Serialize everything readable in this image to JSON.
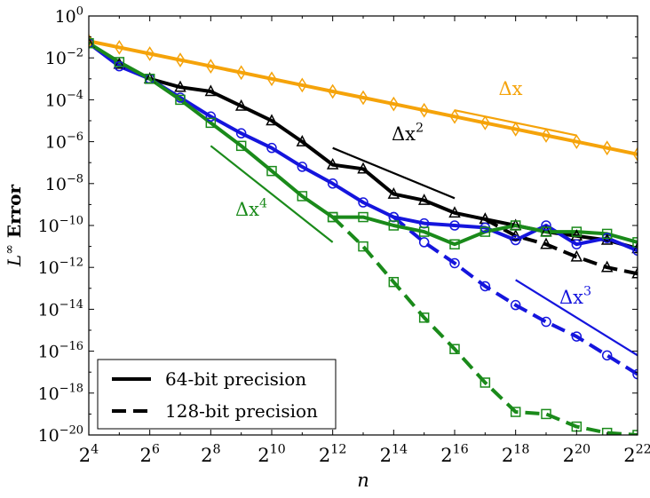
{
  "chart_data": {
    "type": "line",
    "x_scale": "log2",
    "y_scale": "log10",
    "xlim_exp": [
      4,
      22
    ],
    "ylim_exp": [
      -20,
      0
    ],
    "x_tick_base": "2",
    "x_tick_exponents": [
      "4",
      "6",
      "8",
      "10",
      "12",
      "14",
      "16",
      "18",
      "20",
      "22"
    ],
    "y_tick_base": "10",
    "y_tick_exponents": [
      "0",
      "−2",
      "−4",
      "−6",
      "−8",
      "−10",
      "−12",
      "−14",
      "−16",
      "−18",
      "−20"
    ],
    "xlabel": "n",
    "ylabel_math": "L",
    "ylabel_sup": "∞",
    "ylabel_text": " Error",
    "grid": false,
    "legend": {
      "placement": "lower-left",
      "entries": [
        {
          "label": "64-bit precision",
          "style": "solid"
        },
        {
          "label": "128-bit precision",
          "style": "dashed"
        }
      ]
    },
    "series": [
      {
        "order": "Δx",
        "color": "#f5a30a",
        "marker": "diamond",
        "precision": "64-bit",
        "x_exp": [
          4,
          5,
          6,
          7,
          8,
          9,
          10,
          11,
          12,
          13,
          14,
          15,
          16,
          17,
          18,
          19,
          20,
          21,
          22
        ],
        "y_exp": [
          -1.2,
          -1.5,
          -1.8,
          -2.1,
          -2.4,
          -2.7,
          -3.0,
          -3.3,
          -3.6,
          -3.9,
          -4.2,
          -4.5,
          -4.8,
          -5.1,
          -5.4,
          -5.7,
          -6.0,
          -6.3,
          -6.6
        ]
      },
      {
        "order": "Δx²",
        "color": "#000000",
        "marker": "triangle",
        "precision": "64-bit",
        "x_exp": [
          4,
          5,
          6,
          7,
          8,
          9,
          10,
          11,
          12,
          13,
          14,
          15,
          16,
          17,
          18,
          19,
          20,
          21,
          22
        ],
        "y_exp": [
          -1.3,
          -2.3,
          -3.0,
          -3.4,
          -3.6,
          -4.3,
          -5.0,
          -6.0,
          -7.1,
          -7.3,
          -8.5,
          -8.8,
          -9.4,
          -9.7,
          -10.0,
          -10.3,
          -10.5,
          -10.7,
          -11.1
        ]
      },
      {
        "order": "Δx²",
        "color": "#000000",
        "marker": "triangle",
        "precision": "128-bit",
        "x_exp": [
          17,
          18,
          19,
          20,
          21,
          22
        ],
        "y_exp": [
          -9.7,
          -10.5,
          -10.9,
          -11.5,
          -12.0,
          -12.3
        ]
      },
      {
        "order": "Δx³",
        "color": "#1515dd",
        "marker": "circle",
        "precision": "64-bit",
        "x_exp": [
          4,
          5,
          6,
          7,
          8,
          9,
          10,
          11,
          12,
          13,
          14,
          15,
          16,
          17,
          18,
          19,
          20,
          21,
          22
        ],
        "y_exp": [
          -1.3,
          -2.4,
          -3.0,
          -3.9,
          -4.8,
          -5.6,
          -6.3,
          -7.2,
          -8.0,
          -8.9,
          -9.6,
          -9.9,
          -10.0,
          -10.1,
          -10.7,
          -10.0,
          -10.9,
          -10.6,
          -11.2
        ]
      },
      {
        "order": "Δx³",
        "color": "#1515dd",
        "marker": "circle",
        "precision": "128-bit",
        "x_exp": [
          14,
          15,
          16,
          17,
          18,
          19,
          20,
          21,
          22
        ],
        "y_exp": [
          -9.6,
          -10.8,
          -11.8,
          -12.9,
          -13.8,
          -14.6,
          -15.3,
          -16.2,
          -17.1
        ]
      },
      {
        "order": "Δx⁴",
        "color": "#1a8a1a",
        "marker": "square",
        "precision": "64-bit",
        "x_exp": [
          4,
          5,
          6,
          7,
          8,
          9,
          10,
          11,
          12,
          13,
          14,
          15,
          16,
          17,
          18,
          19,
          20,
          21,
          22
        ],
        "y_exp": [
          -1.3,
          -2.2,
          -3.0,
          -4.0,
          -5.1,
          -6.2,
          -7.4,
          -8.6,
          -9.6,
          -9.6,
          -10.0,
          -10.3,
          -10.9,
          -10.3,
          -10.0,
          -10.3,
          -10.3,
          -10.4,
          -10.8
        ]
      },
      {
        "order": "Δx⁴",
        "color": "#1a8a1a",
        "marker": "square",
        "precision": "128-bit",
        "x_exp": [
          12,
          13,
          14,
          15,
          16,
          17,
          18,
          19,
          20,
          21,
          22
        ],
        "y_exp": [
          -9.6,
          -11.0,
          -12.7,
          -14.4,
          -15.9,
          -17.5,
          -18.9,
          -19.0,
          -19.6,
          -19.9,
          -20.0
        ]
      }
    ],
    "reference_slopes": [
      {
        "label_base": "Δx",
        "label_sup": "",
        "color": "#f5a30a",
        "x_exp": [
          16,
          20
        ],
        "y_exp": [
          -4.5,
          -5.7
        ]
      },
      {
        "label_base": "Δx",
        "label_sup": "2",
        "color": "#000000",
        "x_exp": [
          12,
          16
        ],
        "y_exp": [
          -6.3,
          -8.7
        ]
      },
      {
        "label_base": "Δx",
        "label_sup": "3",
        "color": "#1515dd",
        "x_exp": [
          18,
          22
        ],
        "y_exp": [
          -12.6,
          -16.2
        ]
      },
      {
        "label_base": "Δx",
        "label_sup": "4",
        "color": "#1a8a1a",
        "x_exp": [
          8,
          12
        ],
        "y_exp": [
          -6.2,
          -10.8
        ]
      }
    ]
  }
}
